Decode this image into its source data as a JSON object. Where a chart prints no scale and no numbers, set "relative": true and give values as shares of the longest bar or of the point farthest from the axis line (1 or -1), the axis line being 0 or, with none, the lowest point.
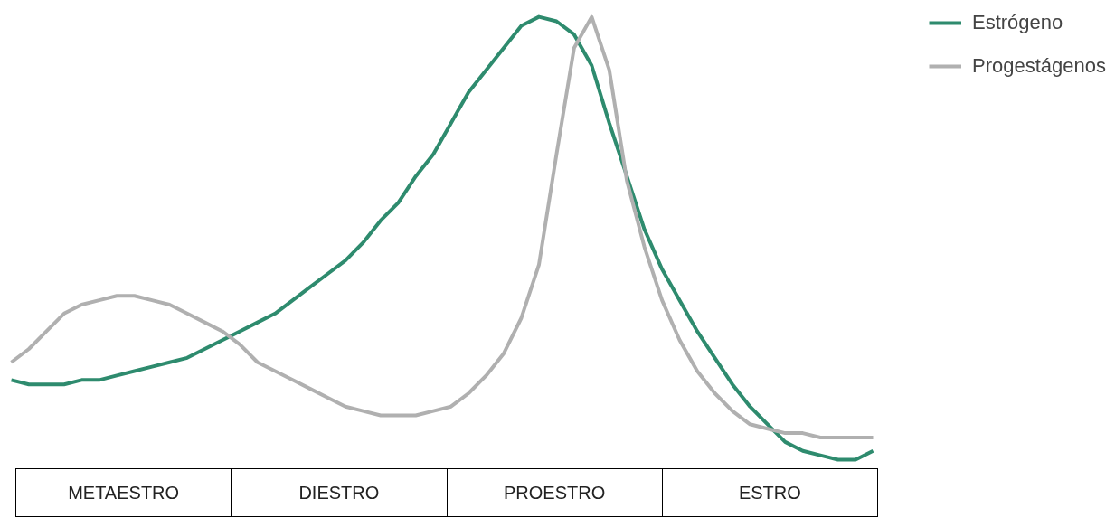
{
  "chart_data": {
    "type": "line",
    "relative": true,
    "legend": "top right",
    "grid": false,
    "categories": [
      null,
      null,
      null,
      null,
      null,
      null,
      null,
      null,
      null,
      null,
      null,
      null,
      null,
      null,
      null,
      null,
      null,
      null,
      null,
      null,
      null,
      null,
      null,
      null,
      null,
      null,
      null,
      null,
      null,
      null,
      null,
      null,
      null,
      null,
      null,
      null,
      null,
      null,
      null,
      null,
      null,
      null,
      null,
      null,
      null,
      null,
      null,
      null,
      null,
      null
    ],
    "series": [
      {
        "name": "Estrógeno",
        "color": "#2e8b6e",
        "values": [
          0.18,
          0.17,
          0.17,
          0.17,
          0.18,
          0.18,
          0.19,
          0.2,
          0.21,
          0.22,
          0.23,
          0.25,
          0.27,
          0.29,
          0.31,
          0.33,
          0.36,
          0.39,
          0.42,
          0.45,
          0.49,
          0.54,
          0.58,
          0.64,
          0.69,
          0.76,
          0.83,
          0.88,
          0.93,
          0.98,
          1.0,
          0.99,
          0.96,
          0.89,
          0.76,
          0.64,
          0.52,
          0.43,
          0.36,
          0.29,
          0.23,
          0.17,
          0.12,
          0.08,
          0.04,
          0.02,
          0.01,
          0.0,
          0.0,
          0.02
        ]
      },
      {
        "name": "Progestágenos",
        "color": "#b0b0b0",
        "values": [
          0.22,
          0.25,
          0.29,
          0.33,
          0.35,
          0.36,
          0.37,
          0.37,
          0.36,
          0.35,
          0.33,
          0.31,
          0.29,
          0.26,
          0.22,
          0.2,
          0.18,
          0.16,
          0.14,
          0.12,
          0.11,
          0.1,
          0.1,
          0.1,
          0.11,
          0.12,
          0.15,
          0.19,
          0.24,
          0.32,
          0.44,
          0.69,
          0.93,
          1.0,
          0.88,
          0.63,
          0.48,
          0.36,
          0.27,
          0.2,
          0.15,
          0.11,
          0.08,
          0.07,
          0.06,
          0.06,
          0.05,
          0.05,
          0.05,
          0.05
        ]
      }
    ],
    "annotations": [
      "METAESTRO",
      "DIESTRO",
      "PROESTRO",
      "ESTRO"
    ]
  }
}
